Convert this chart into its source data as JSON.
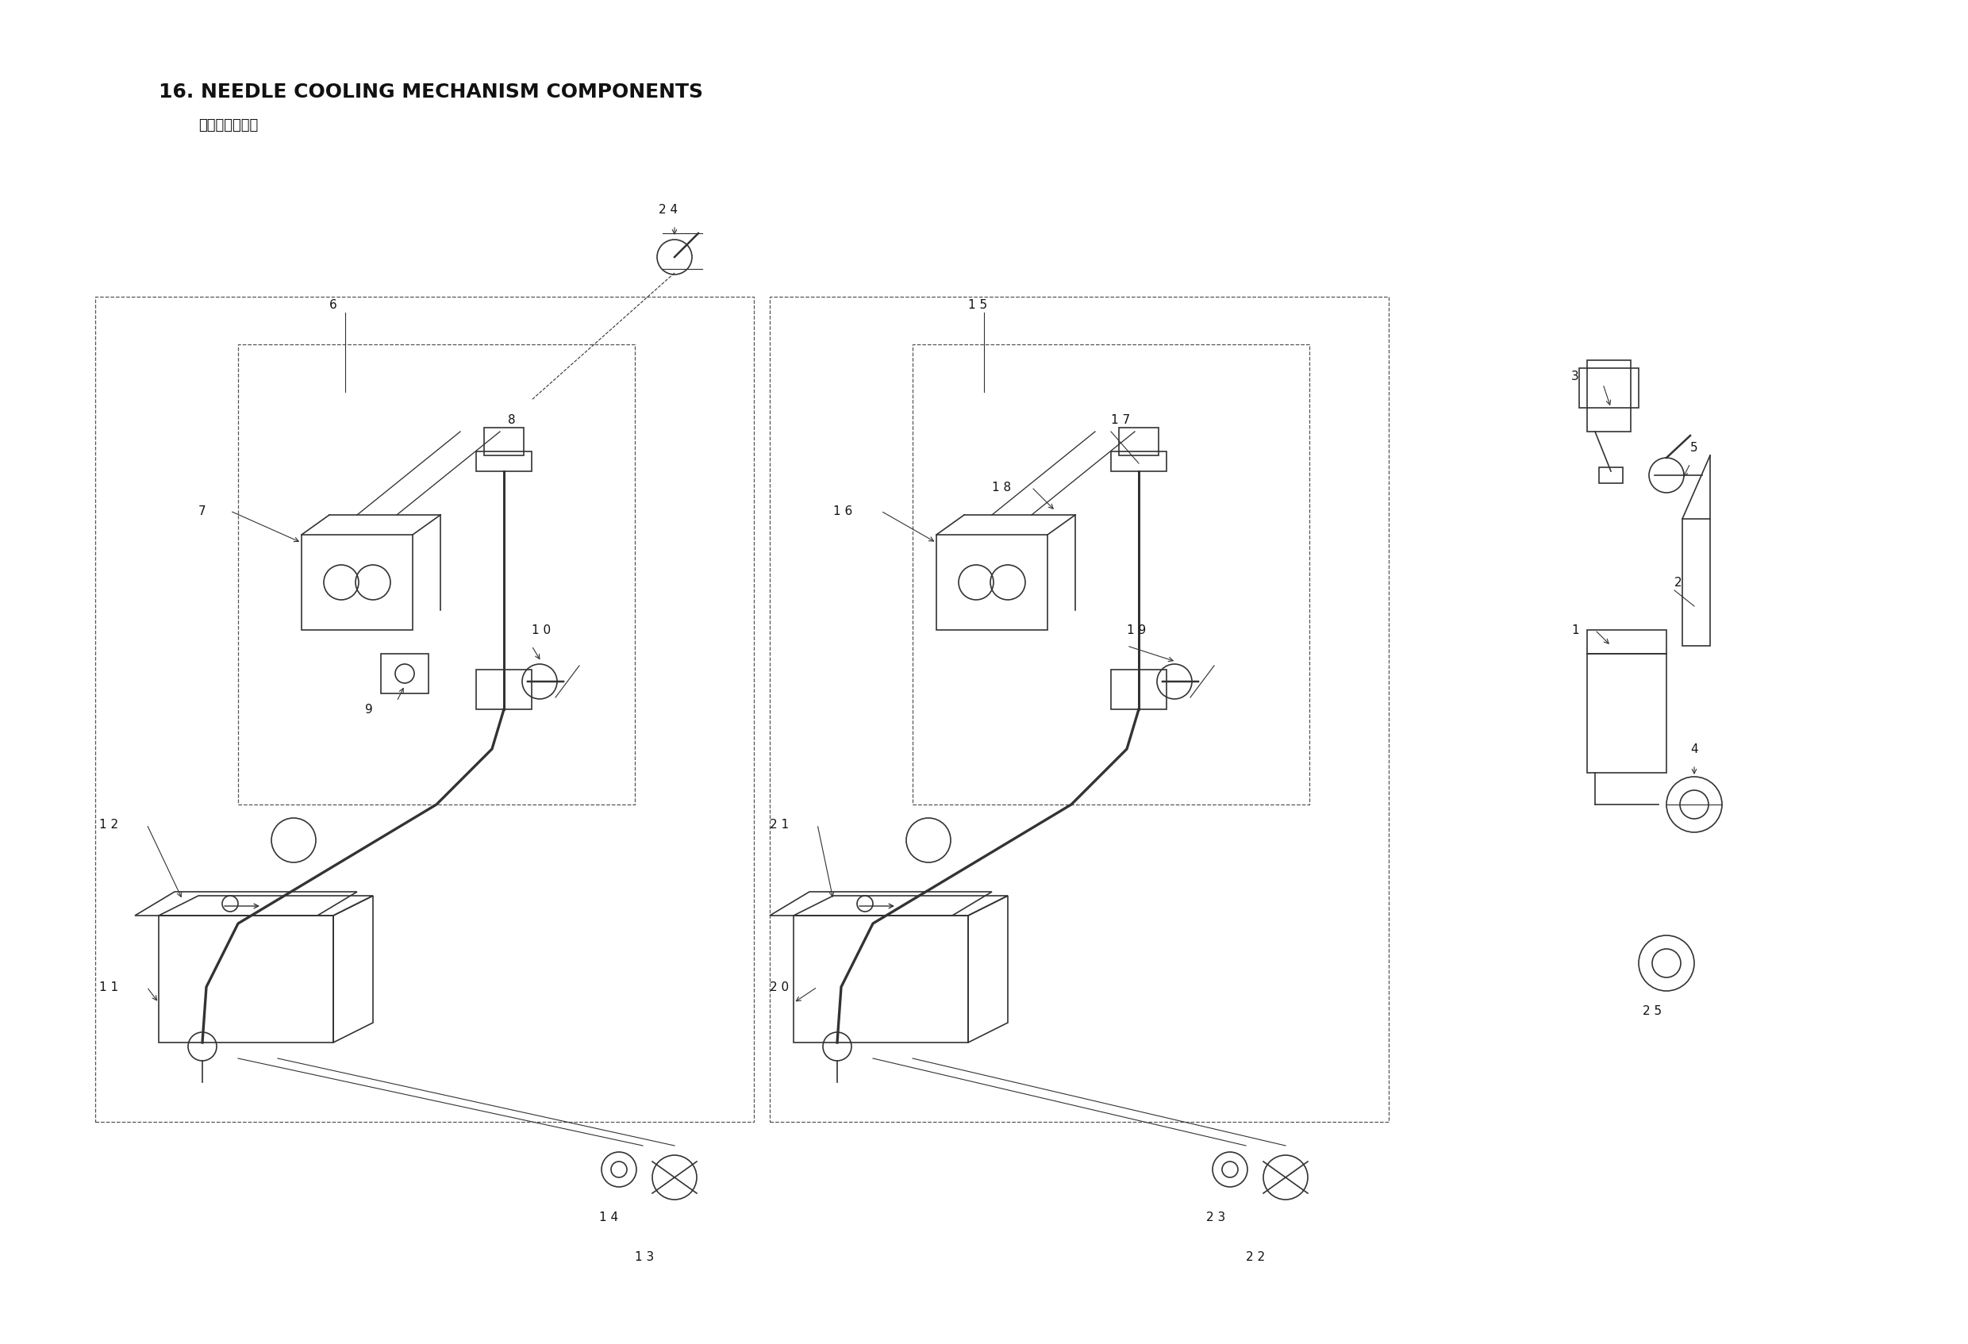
{
  "title": "16. NEEDLE COOLING MECHANISM COMPONENTS",
  "subtitle": "针冷却装置関係",
  "bg_color": "#ffffff",
  "line_color": "#333333",
  "dashed_color": "#555555",
  "text_color": "#111111",
  "fig_width": 24.8,
  "fig_height": 16.94
}
